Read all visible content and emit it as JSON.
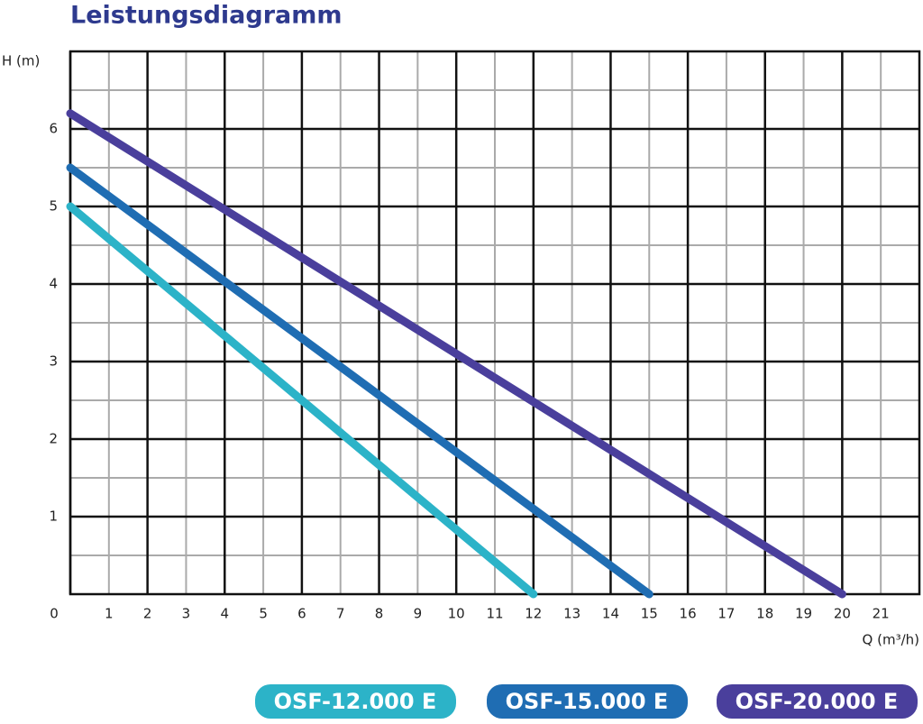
{
  "chart_data": {
    "type": "line",
    "title": "Leistungsdiagramm",
    "y_label": "H (m)",
    "x_label": "Q (m³/h)",
    "xlim": [
      0,
      22
    ],
    "xticks": [
      0,
      1,
      2,
      3,
      4,
      5,
      6,
      7,
      8,
      9,
      10,
      11,
      12,
      13,
      14,
      15,
      16,
      17,
      18,
      19,
      20,
      21
    ],
    "ylim": [
      0,
      7
    ],
    "yticks": [
      1,
      2,
      3,
      4,
      5,
      6
    ],
    "grid": true,
    "series": [
      {
        "name": "OSF-12.000 E",
        "color": "#2cb3c8",
        "x": [
          0,
          12
        ],
        "values": [
          5,
          0
        ]
      },
      {
        "name": "OSF-15.000 E",
        "color": "#1f6db3",
        "x": [
          0,
          15
        ],
        "values": [
          5.5,
          0
        ]
      },
      {
        "name": "OSF-20.000 E",
        "color": "#4a3f9c",
        "x": [
          0,
          20
        ],
        "values": [
          6.2,
          0
        ]
      }
    ]
  }
}
